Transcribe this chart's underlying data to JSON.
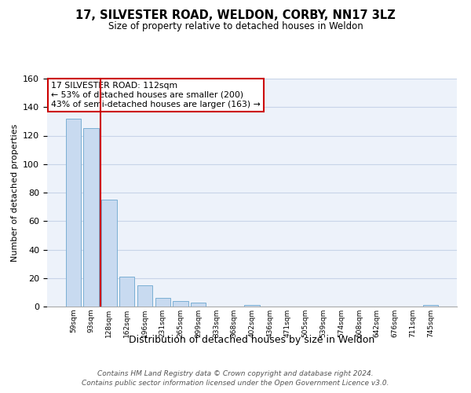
{
  "title": "17, SILVESTER ROAD, WELDON, CORBY, NN17 3LZ",
  "subtitle": "Size of property relative to detached houses in Weldon",
  "xlabel": "Distribution of detached houses by size in Weldon",
  "ylabel": "Number of detached properties",
  "bar_labels": [
    "59sqm",
    "93sqm",
    "128sqm",
    "162sqm",
    "196sqm",
    "231sqm",
    "265sqm",
    "299sqm",
    "333sqm",
    "368sqm",
    "402sqm",
    "436sqm",
    "471sqm",
    "505sqm",
    "539sqm",
    "574sqm",
    "608sqm",
    "642sqm",
    "676sqm",
    "711sqm",
    "745sqm"
  ],
  "bar_values": [
    132,
    125,
    75,
    21,
    15,
    6,
    4,
    3,
    0,
    0,
    1,
    0,
    0,
    0,
    0,
    0,
    0,
    0,
    0,
    0,
    1
  ],
  "bar_color": "#c8daf0",
  "bar_edge_color": "#7bafd4",
  "vline_x": 1.5,
  "vline_color": "#cc0000",
  "annotation_title": "17 SILVESTER ROAD: 112sqm",
  "annotation_line1": "← 53% of detached houses are smaller (200)",
  "annotation_line2": "43% of semi-detached houses are larger (163) →",
  "annotation_box_facecolor": "#ffffff",
  "annotation_box_edgecolor": "#cc0000",
  "ylim": [
    0,
    160
  ],
  "yticks": [
    0,
    20,
    40,
    60,
    80,
    100,
    120,
    140,
    160
  ],
  "footer1": "Contains HM Land Registry data © Crown copyright and database right 2024.",
  "footer2": "Contains public sector information licensed under the Open Government Licence v3.0.",
  "bg_color": "#edf2fa",
  "grid_color": "#c8d4e8"
}
